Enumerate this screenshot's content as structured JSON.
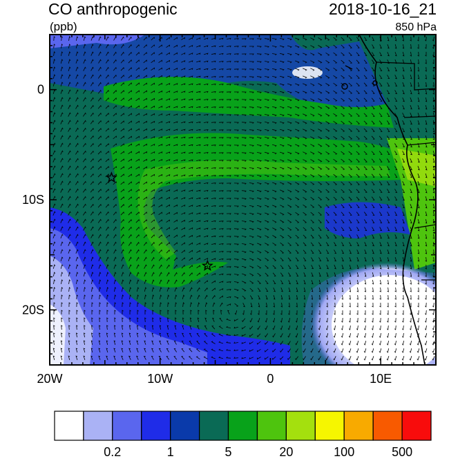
{
  "title": "CO anthropogenic",
  "units": "(ppb)",
  "timestamp": "2018-10-16_21",
  "level": "850 hPa",
  "axes": {
    "x_ticks": [
      {
        "value": -20,
        "label": "20W"
      },
      {
        "value": -10,
        "label": "10W"
      },
      {
        "value": 0,
        "label": "0"
      },
      {
        "value": 10,
        "label": "10E"
      }
    ],
    "y_ticks": [
      {
        "value": 0,
        "label": "0"
      },
      {
        "value": -10,
        "label": "10S"
      },
      {
        "value": -20,
        "label": "20S"
      }
    ],
    "lon_range": [
      -20,
      15
    ],
    "lat_range": [
      -25,
      5
    ]
  },
  "markers": [
    {
      "name": "star-1",
      "lon": -14.4,
      "lat": -8.0
    },
    {
      "name": "star-2",
      "lon": -5.7,
      "lat": -16.0
    }
  ],
  "colorbar": {
    "colors": [
      "#ffffff",
      "#aab2f5",
      "#5a66ee",
      "#1f2ce8",
      "#0a3aaa",
      "#0a6a55",
      "#08a21a",
      "#4ec40e",
      "#a4e00e",
      "#f6f600",
      "#f8aa00",
      "#f85a00",
      "#f80c0c"
    ],
    "labels": [
      {
        "after_box": 1,
        "text": "0.2"
      },
      {
        "after_box": 3,
        "text": "1"
      },
      {
        "after_box": 5,
        "text": "5"
      },
      {
        "after_box": 7,
        "text": "20"
      },
      {
        "after_box": 9,
        "text": "100"
      },
      {
        "after_box": 11,
        "text": "500"
      }
    ]
  }
}
